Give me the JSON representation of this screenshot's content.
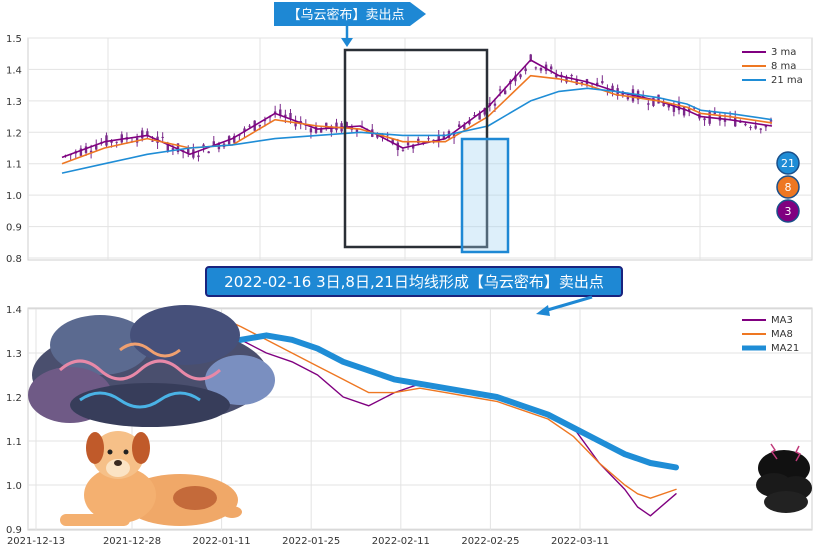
{
  "top_banner": "【乌云密布】卖出点",
  "mid_banner": "2022-02-16 3日,8日,21日均线形成【乌云密布】卖出点",
  "badges": [
    "21",
    "8",
    "3"
  ],
  "colors": {
    "ma3": "#800080",
    "ma8": "#ee7722",
    "ma21": "#1f8dd6",
    "candle": "#7a2a8a",
    "banner": "#1e88d4",
    "box": "#2a2f36"
  },
  "chart_data": [
    {
      "type": "line",
      "title": "",
      "ylim": [
        0.8,
        1.5
      ],
      "yticks": [
        "0.8",
        "0.9",
        "1.0",
        "1.1",
        "1.2",
        "1.3",
        "1.4",
        "1.5"
      ],
      "xlim": [
        0,
        100
      ],
      "legend_position": "top-right",
      "grid": true,
      "series": [
        {
          "name": "3 ma",
          "color": "#800080",
          "x": [
            0,
            6,
            12,
            18,
            24,
            30,
            36,
            42,
            48,
            54,
            60,
            66,
            70,
            74,
            78,
            84,
            88,
            90,
            94,
            100
          ],
          "values": [
            1.12,
            1.17,
            1.19,
            1.13,
            1.18,
            1.26,
            1.21,
            1.22,
            1.15,
            1.18,
            1.28,
            1.43,
            1.38,
            1.36,
            1.33,
            1.3,
            1.27,
            1.25,
            1.24,
            1.22
          ]
        },
        {
          "name": "8 ma",
          "color": "#ee7722",
          "x": [
            0,
            6,
            12,
            18,
            24,
            30,
            36,
            42,
            48,
            54,
            60,
            66,
            70,
            74,
            78,
            84,
            88,
            90,
            94,
            100
          ],
          "values": [
            1.1,
            1.15,
            1.18,
            1.15,
            1.16,
            1.24,
            1.22,
            1.21,
            1.17,
            1.17,
            1.25,
            1.38,
            1.37,
            1.35,
            1.32,
            1.3,
            1.28,
            1.26,
            1.25,
            1.23
          ]
        },
        {
          "name": "21 ma",
          "color": "#1f8dd6",
          "x": [
            0,
            6,
            12,
            18,
            24,
            30,
            36,
            42,
            48,
            54,
            60,
            66,
            70,
            74,
            78,
            84,
            88,
            90,
            94,
            100
          ],
          "values": [
            1.07,
            1.1,
            1.13,
            1.15,
            1.16,
            1.18,
            1.19,
            1.2,
            1.19,
            1.19,
            1.22,
            1.3,
            1.33,
            1.34,
            1.33,
            1.31,
            1.29,
            1.27,
            1.26,
            1.24
          ]
        }
      ]
    },
    {
      "type": "line",
      "title": "",
      "ylim": [
        0.9,
        1.4
      ],
      "yticks": [
        "0.9",
        "1.0",
        "1.1",
        "1.2",
        "1.3",
        "1.4"
      ],
      "xlim": [
        0,
        110
      ],
      "xticks": [
        {
          "x": 0,
          "label": "2021-12-13"
        },
        {
          "x": 15,
          "label": "2021-12-28"
        },
        {
          "x": 29,
          "label": "2022-01-11"
        },
        {
          "x": 43,
          "label": "2022-01-25"
        },
        {
          "x": 57,
          "label": "2022-02-11"
        },
        {
          "x": 71,
          "label": "2022-02-25"
        },
        {
          "x": 85,
          "label": "2022-03-11"
        }
      ],
      "legend_position": "top-right",
      "grid": true,
      "series": [
        {
          "name": "MA3",
          "color": "#800080",
          "x": [
            29,
            32,
            36,
            40,
            44,
            48,
            52,
            56,
            60,
            64,
            68,
            72,
            76,
            80,
            84,
            88,
            92,
            94,
            96,
            100
          ],
          "values": [
            1.37,
            1.33,
            1.3,
            1.28,
            1.25,
            1.2,
            1.18,
            1.21,
            1.23,
            1.22,
            1.21,
            1.2,
            1.18,
            1.16,
            1.13,
            1.05,
            0.99,
            0.95,
            0.93,
            0.98
          ]
        },
        {
          "name": "MA8",
          "color": "#ee7722",
          "x": [
            29,
            32,
            36,
            40,
            44,
            48,
            52,
            56,
            60,
            64,
            68,
            72,
            76,
            80,
            84,
            88,
            92,
            94,
            96,
            100
          ],
          "values": [
            1.38,
            1.36,
            1.33,
            1.3,
            1.27,
            1.24,
            1.21,
            1.21,
            1.22,
            1.21,
            1.2,
            1.19,
            1.17,
            1.15,
            1.11,
            1.05,
            1.0,
            0.98,
            0.97,
            0.99
          ]
        },
        {
          "name": "MA21",
          "color": "#1f8dd6",
          "x": [
            29,
            32,
            36,
            40,
            44,
            48,
            52,
            56,
            60,
            64,
            68,
            72,
            76,
            80,
            84,
            88,
            92,
            94,
            96,
            100
          ],
          "values": [
            1.32,
            1.33,
            1.34,
            1.33,
            1.31,
            1.28,
            1.26,
            1.24,
            1.23,
            1.22,
            1.21,
            1.2,
            1.18,
            1.16,
            1.13,
            1.1,
            1.07,
            1.06,
            1.05,
            1.04
          ]
        }
      ]
    }
  ]
}
